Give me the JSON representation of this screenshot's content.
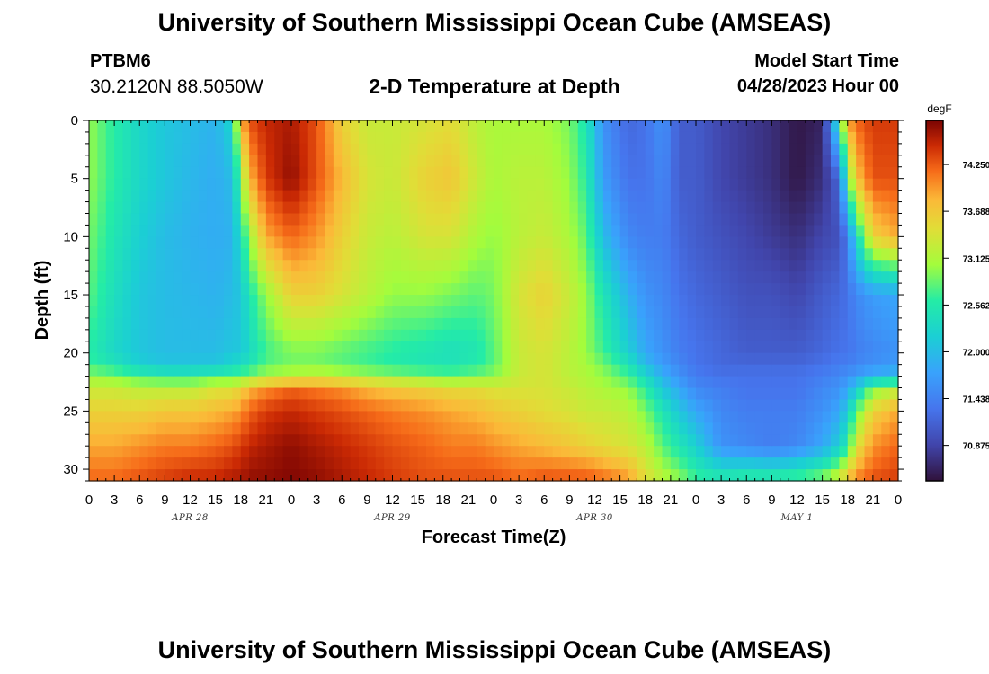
{
  "header": {
    "title": "University of Southern Mississippi Ocean Cube (AMSEAS)",
    "station": "PTBM6",
    "coords": "30.2120N  88.5050W",
    "subtitle": "2-D Temperature at Depth",
    "model_start_label": "Model Start Time",
    "model_start_value": "04/28/2023 Hour 00"
  },
  "footer": {
    "title": "University of Southern Mississippi Ocean Cube (AMSEAS)"
  },
  "chart_data": {
    "type": "heatmap",
    "title": "2-D Temperature at Depth",
    "xlabel": "Forecast Time(Z)",
    "ylabel": "Depth (ft)",
    "x_ticks": [
      "0",
      "3",
      "6",
      "9",
      "12",
      "15",
      "18",
      "21",
      "0",
      "3",
      "6",
      "9",
      "12",
      "15",
      "18",
      "21",
      "0",
      "3",
      "6",
      "9",
      "12",
      "15",
      "18",
      "21",
      "0",
      "3",
      "6",
      "9",
      "12",
      "15",
      "18",
      "21",
      "0"
    ],
    "x_range_hours": [
      0,
      96
    ],
    "date_labels": [
      {
        "label": "APR 28",
        "hour": 12
      },
      {
        "label": "APR 29",
        "hour": 36
      },
      {
        "label": "APR 30",
        "hour": 60
      },
      {
        "label": "MAY 1",
        "hour": 84
      }
    ],
    "y_ticks": [
      0,
      5,
      10,
      15,
      20,
      25,
      30
    ],
    "ylim": [
      31,
      0
    ],
    "colorbar": {
      "unit": "degF",
      "ticks": [
        "74.250",
        "73.688",
        "73.125",
        "72.562",
        "72.000",
        "71.438",
        "70.875"
      ],
      "range": [
        70.45,
        74.78
      ]
    },
    "depth_levels_ft": [
      0,
      5,
      10,
      15,
      20,
      21,
      22,
      23,
      25,
      28,
      31
    ],
    "columns": [
      {
        "hour": 0,
        "temps": [
          73.0,
          73.0,
          72.9,
          72.8,
          72.6,
          72.7,
          73.0,
          73.3,
          73.6,
          73.9,
          74.2
        ]
      },
      {
        "hour": 3,
        "temps": [
          72.6,
          72.6,
          72.5,
          72.4,
          72.3,
          72.5,
          72.9,
          73.3,
          73.6,
          73.9,
          74.2
        ]
      },
      {
        "hour": 6,
        "temps": [
          72.3,
          72.3,
          72.2,
          72.1,
          72.1,
          72.2,
          72.7,
          73.2,
          73.6,
          74.0,
          74.3
        ]
      },
      {
        "hour": 9,
        "temps": [
          72.1,
          72.1,
          72.0,
          72.0,
          72.0,
          72.1,
          72.6,
          73.2,
          73.7,
          74.1,
          74.4
        ]
      },
      {
        "hour": 12,
        "temps": [
          72.0,
          71.95,
          71.9,
          71.95,
          72.0,
          72.1,
          72.6,
          73.2,
          73.7,
          74.1,
          74.5
        ]
      },
      {
        "hour": 15,
        "temps": [
          71.9,
          71.85,
          71.85,
          71.9,
          72.0,
          72.1,
          72.7,
          73.4,
          73.8,
          74.2,
          74.5
        ]
      },
      {
        "hour": 17,
        "temps": [
          72.3,
          72.0,
          71.9,
          72.0,
          72.1,
          72.3,
          72.7,
          73.4,
          73.9,
          74.3,
          74.6
        ]
      },
      {
        "hour": 18,
        "temps": [
          73.8,
          72.9,
          72.4,
          72.1,
          72.1,
          72.4,
          72.8,
          73.6,
          74.0,
          74.4,
          74.6
        ]
      },
      {
        "hour": 19,
        "temps": [
          74.3,
          73.8,
          73.0,
          72.5,
          72.3,
          72.5,
          72.9,
          73.8,
          74.2,
          74.5,
          74.7
        ]
      },
      {
        "hour": 21,
        "temps": [
          74.5,
          74.4,
          73.9,
          73.0,
          72.7,
          72.8,
          73.1,
          74.0,
          74.4,
          74.6,
          74.7
        ]
      },
      {
        "hour": 24,
        "temps": [
          74.6,
          74.7,
          74.2,
          73.6,
          72.9,
          72.9,
          73.2,
          74.2,
          74.5,
          74.7,
          74.75
        ]
      },
      {
        "hour": 27,
        "temps": [
          74.3,
          74.3,
          74.0,
          73.6,
          72.9,
          72.9,
          73.3,
          74.1,
          74.4,
          74.6,
          74.7
        ]
      },
      {
        "hour": 30,
        "temps": [
          73.6,
          73.8,
          73.6,
          73.4,
          72.8,
          72.8,
          73.2,
          74.0,
          74.3,
          74.5,
          74.6
        ]
      },
      {
        "hour": 33,
        "temps": [
          73.3,
          73.4,
          73.3,
          73.2,
          72.7,
          72.7,
          73.1,
          73.8,
          74.2,
          74.4,
          74.5
        ]
      },
      {
        "hour": 36,
        "temps": [
          73.3,
          73.3,
          73.2,
          73.0,
          72.6,
          72.6,
          73.0,
          73.7,
          74.1,
          74.3,
          74.4
        ]
      },
      {
        "hour": 40,
        "temps": [
          73.4,
          73.6,
          73.4,
          73.0,
          72.5,
          72.5,
          72.9,
          73.6,
          74.0,
          74.2,
          74.3
        ]
      },
      {
        "hour": 43,
        "temps": [
          73.5,
          73.7,
          73.4,
          72.9,
          72.4,
          72.5,
          72.8,
          73.5,
          73.9,
          74.1,
          74.3
        ]
      },
      {
        "hour": 46,
        "temps": [
          73.2,
          73.3,
          73.1,
          72.8,
          72.5,
          72.6,
          72.9,
          73.5,
          73.8,
          74.1,
          74.3
        ]
      },
      {
        "hour": 48,
        "temps": [
          73.1,
          73.1,
          73.0,
          72.9,
          72.8,
          72.8,
          73.0,
          73.4,
          73.7,
          74.0,
          74.3
        ]
      },
      {
        "hour": 51,
        "temps": [
          73.1,
          73.2,
          73.2,
          73.4,
          73.3,
          73.3,
          73.3,
          73.4,
          73.6,
          73.9,
          74.2
        ]
      },
      {
        "hour": 54,
        "temps": [
          73.1,
          73.2,
          73.3,
          73.6,
          73.4,
          73.4,
          73.4,
          73.4,
          73.5,
          73.8,
          74.3
        ]
      },
      {
        "hour": 57,
        "temps": [
          72.9,
          73.0,
          73.1,
          73.3,
          73.2,
          73.2,
          73.2,
          73.3,
          73.4,
          73.7,
          74.3
        ]
      },
      {
        "hour": 59,
        "temps": [
          72.5,
          72.6,
          72.8,
          73.0,
          73.0,
          73.1,
          73.1,
          73.2,
          73.3,
          73.6,
          74.3
        ]
      },
      {
        "hour": 61,
        "temps": [
          71.6,
          71.7,
          72.0,
          72.5,
          72.7,
          72.9,
          73.0,
          73.1,
          73.3,
          73.5,
          74.2
        ]
      },
      {
        "hour": 64,
        "temps": [
          71.2,
          71.3,
          71.5,
          71.9,
          72.2,
          72.5,
          72.7,
          73.0,
          73.2,
          73.4,
          74.0
        ]
      },
      {
        "hour": 66,
        "temps": [
          71.3,
          71.3,
          71.4,
          71.6,
          71.8,
          72.0,
          72.3,
          72.6,
          72.9,
          73.2,
          73.5
        ]
      },
      {
        "hour": 68,
        "temps": [
          71.6,
          71.5,
          71.4,
          71.5,
          71.6,
          71.7,
          71.9,
          72.1,
          72.5,
          72.8,
          73.2
        ]
      },
      {
        "hour": 70,
        "temps": [
          71.1,
          71.1,
          71.2,
          71.3,
          71.4,
          71.5,
          71.6,
          71.8,
          72.1,
          72.5,
          73.0
        ]
      },
      {
        "hour": 72,
        "temps": [
          71.1,
          71.1,
          71.1,
          71.2,
          71.3,
          71.3,
          71.4,
          71.5,
          71.8,
          72.2,
          72.7
        ]
      },
      {
        "hour": 75,
        "temps": [
          70.9,
          70.9,
          71.0,
          71.1,
          71.2,
          71.2,
          71.3,
          71.4,
          71.5,
          71.6,
          72.6
        ]
      },
      {
        "hour": 78,
        "temps": [
          70.8,
          70.8,
          70.9,
          71.0,
          71.1,
          71.2,
          71.3,
          71.3,
          71.4,
          71.5,
          72.7
        ]
      },
      {
        "hour": 81,
        "temps": [
          70.7,
          70.7,
          70.8,
          71.0,
          71.1,
          71.2,
          71.3,
          71.3,
          71.4,
          71.4,
          72.7
        ]
      },
      {
        "hour": 84,
        "temps": [
          70.5,
          70.5,
          70.7,
          70.9,
          71.1,
          71.2,
          71.3,
          71.3,
          71.4,
          71.5,
          72.8
        ]
      },
      {
        "hour": 87,
        "temps": [
          70.6,
          70.7,
          70.9,
          71.1,
          71.2,
          71.3,
          71.4,
          71.5,
          71.6,
          71.8,
          73.0
        ]
      },
      {
        "hour": 89,
        "temps": [
          72.6,
          71.2,
          71.0,
          71.2,
          71.3,
          71.4,
          71.5,
          71.6,
          71.8,
          72.2,
          73.4
        ]
      },
      {
        "hour": 90,
        "temps": [
          73.9,
          72.8,
          71.4,
          71.3,
          71.3,
          71.4,
          71.6,
          71.8,
          72.2,
          72.6,
          73.8
        ]
      },
      {
        "hour": 91,
        "temps": [
          74.2,
          73.7,
          72.3,
          71.5,
          71.4,
          71.5,
          71.7,
          72.1,
          72.8,
          73.4,
          74.1
        ]
      },
      {
        "hour": 93,
        "temps": [
          74.4,
          74.3,
          73.6,
          71.7,
          71.5,
          71.6,
          71.9,
          72.9,
          73.6,
          74.0,
          74.3
        ]
      },
      {
        "hour": 96,
        "temps": [
          74.4,
          74.3,
          73.9,
          71.8,
          71.6,
          71.7,
          72.0,
          73.2,
          73.9,
          74.2,
          74.4
        ]
      }
    ]
  }
}
